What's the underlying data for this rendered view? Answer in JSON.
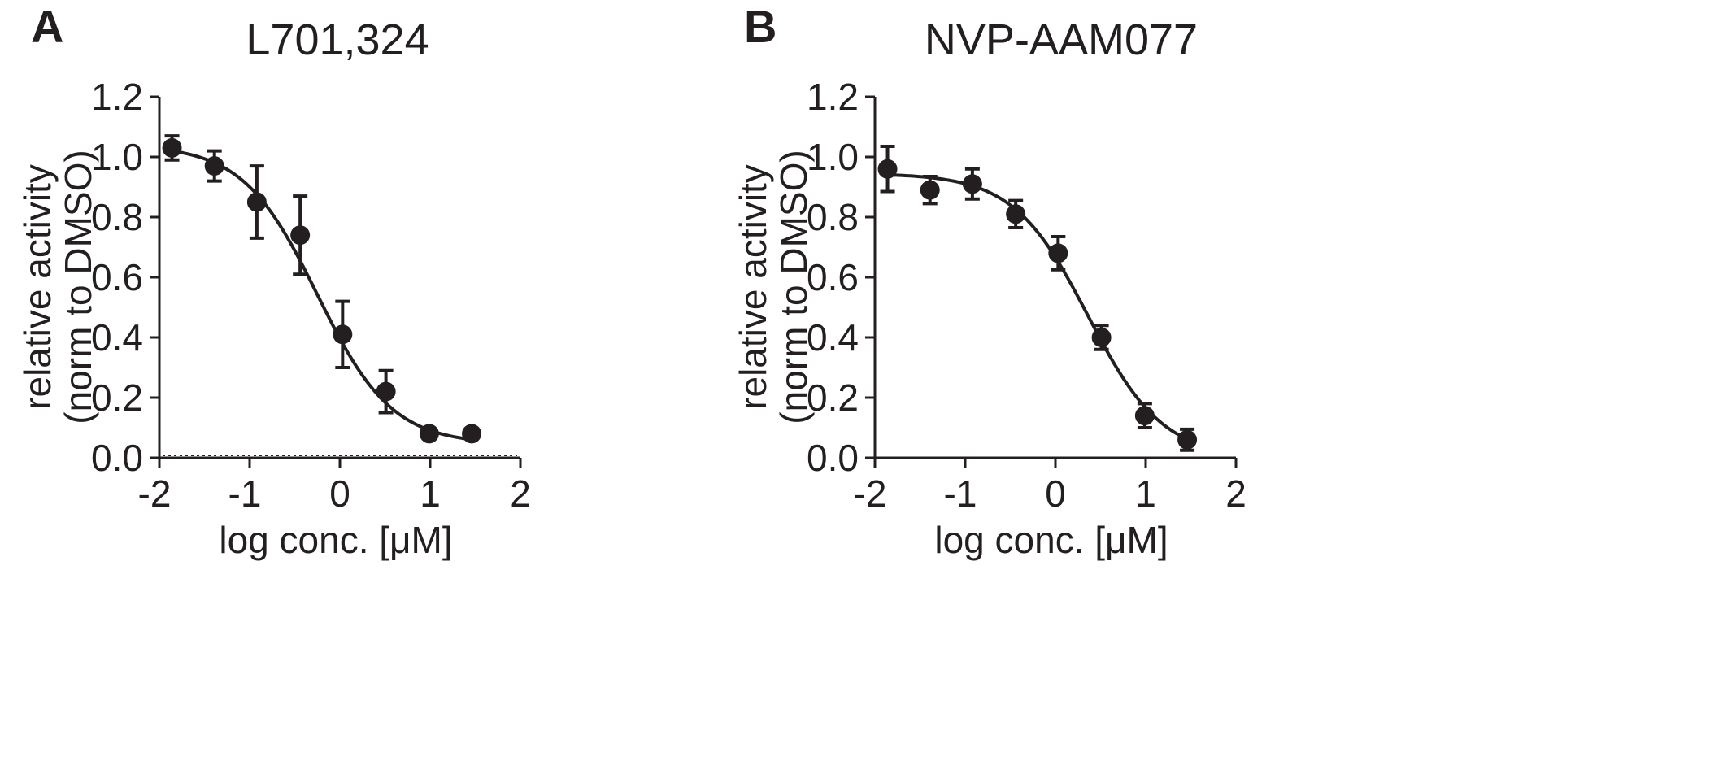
{
  "chart_data": [
    {
      "type": "scatter",
      "panel_label": "A",
      "title": "L701,324",
      "xlabel": "log conc. [μM]",
      "ylabel_line1": "relative activity",
      "ylabel_line2": "(norm to DMSO)",
      "xlim": [
        -2,
        2
      ],
      "ylim": [
        0,
        1.2
      ],
      "xticks": [
        -2,
        -1,
        0,
        1,
        2
      ],
      "xtick_labels": [
        "-2",
        "-1",
        "0",
        "1",
        "2"
      ],
      "yticks": [
        0,
        0.2,
        0.4,
        0.6,
        0.8,
        1.0,
        1.2
      ],
      "ytick_labels": [
        "0.0",
        "0.2",
        "0.4",
        "0.6",
        "0.8",
        "1.0",
        "1.2"
      ],
      "dotted_baseline": true,
      "points": [
        {
          "x": -1.86,
          "y": 1.03,
          "err": 0.04
        },
        {
          "x": -1.39,
          "y": 0.97,
          "err": 0.05
        },
        {
          "x": -0.92,
          "y": 0.85,
          "err": 0.12
        },
        {
          "x": -0.44,
          "y": 0.74,
          "err": 0.13
        },
        {
          "x": 0.03,
          "y": 0.41,
          "err": 0.11
        },
        {
          "x": 0.51,
          "y": 0.22,
          "err": 0.07
        },
        {
          "x": 0.99,
          "y": 0.08,
          "err": 0.0
        },
        {
          "x": 1.46,
          "y": 0.08,
          "err": 0.0
        }
      ],
      "fit": {
        "bottom": 0.045,
        "top": 1.04,
        "logIC50": -0.25,
        "hill": 1.05,
        "x_range": [
          -1.86,
          1.46
        ]
      }
    },
    {
      "type": "scatter",
      "panel_label": "B",
      "title": "NVP-AAM077",
      "xlabel": "log conc. [μM]",
      "ylabel_line1": "relative activity",
      "ylabel_line2": "(norm to DMSO)",
      "xlim": [
        -2,
        2
      ],
      "ylim": [
        0,
        1.2
      ],
      "xticks": [
        -2,
        -1,
        0,
        1,
        2
      ],
      "xtick_labels": [
        "-2",
        "-1",
        "0",
        "1",
        "2"
      ],
      "yticks": [
        0,
        0.2,
        0.4,
        0.6,
        0.8,
        1.0,
        1.2
      ],
      "ytick_labels": [
        "0.0",
        "0.2",
        "0.4",
        "0.6",
        "0.8",
        "1.0",
        "1.2"
      ],
      "dotted_baseline": false,
      "points": [
        {
          "x": -1.86,
          "y": 0.96,
          "err": 0.075
        },
        {
          "x": -1.39,
          "y": 0.89,
          "err": 0.045
        },
        {
          "x": -0.92,
          "y": 0.91,
          "err": 0.05
        },
        {
          "x": -0.44,
          "y": 0.81,
          "err": 0.045
        },
        {
          "x": 0.03,
          "y": 0.68,
          "err": 0.055
        },
        {
          "x": 0.51,
          "y": 0.4,
          "err": 0.04
        },
        {
          "x": 0.99,
          "y": 0.14,
          "err": 0.04
        },
        {
          "x": 1.46,
          "y": 0.06,
          "err": 0.035
        }
      ],
      "fit": {
        "bottom": 0.0,
        "top": 0.945,
        "logIC50": 0.36,
        "hill": 1.05,
        "x_range": [
          -1.86,
          1.46
        ]
      }
    }
  ]
}
